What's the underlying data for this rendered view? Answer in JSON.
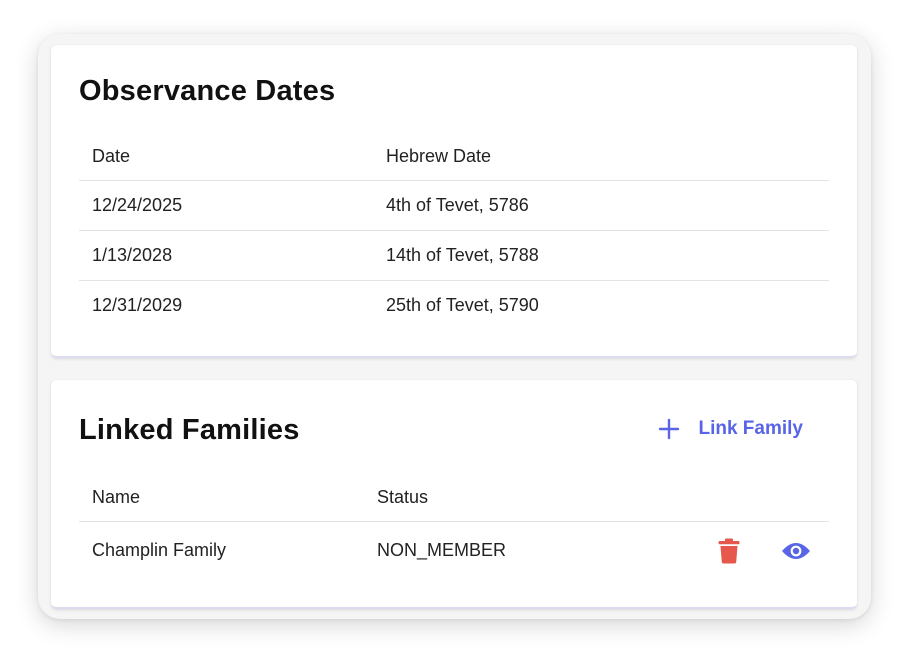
{
  "observance": {
    "title": "Observance Dates",
    "columns": {
      "date": "Date",
      "hebrew": "Hebrew Date"
    },
    "rows": [
      {
        "date": "12/24/2025",
        "hebrew": "4th of Tevet, 5786"
      },
      {
        "date": "1/13/2028",
        "hebrew": "14th of Tevet, 5788"
      },
      {
        "date": "12/31/2029",
        "hebrew": "25th of Tevet, 5790"
      }
    ]
  },
  "families": {
    "title": "Linked Families",
    "link_label": "Link Family",
    "columns": {
      "name": "Name",
      "status": "Status"
    },
    "rows": [
      {
        "name": "Champlin Family",
        "status": "NON_MEMBER"
      }
    ]
  },
  "icons": {
    "link": "plus-icon",
    "delete": "trash-icon",
    "view": "eye-icon"
  },
  "colors": {
    "accent": "#5765e6",
    "danger": "#e5584b"
  }
}
